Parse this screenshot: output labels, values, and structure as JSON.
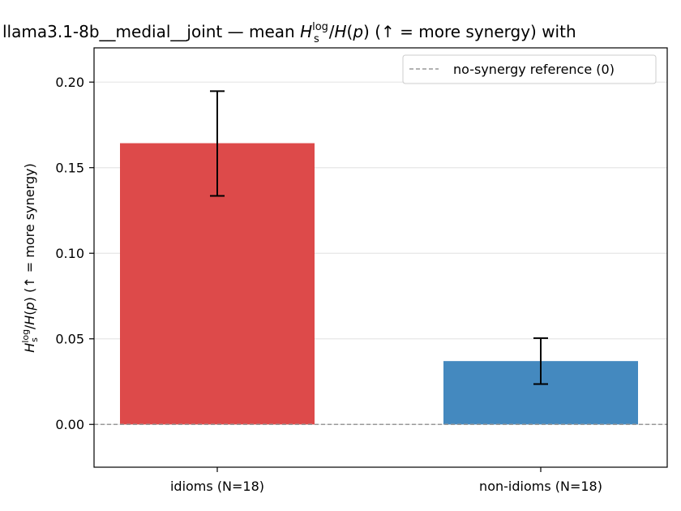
{
  "chart_data": {
    "type": "bar",
    "title_prefix": "llama3.1-8b__medial__joint — mean ",
    "title_suffix": "  (↑ = more synergy) with",
    "ylabel_suffix": "  (↑ = more synergy)",
    "metric": {
      "H": "H",
      "sup": "log",
      "sub": "s",
      "rest": "/",
      "H2": "H",
      "p": "p"
    },
    "categories": [
      "idioms (N=18)",
      "non-idioms (N=18)"
    ],
    "values": [
      0.1643,
      0.037
    ],
    "errors": [
      [
        0.1335,
        0.1947
      ],
      [
        0.0236,
        0.0504
      ]
    ],
    "colors": [
      "#dd4a4a",
      "#4489bf"
    ],
    "ylim": [
      -0.025,
      0.22
    ],
    "yticks": [
      0.0,
      0.05,
      0.1,
      0.15,
      0.2
    ],
    "ytick_labels": [
      "0.00",
      "0.05",
      "0.10",
      "0.15",
      "0.20"
    ],
    "reference_line": {
      "y": 0,
      "label": "no-synergy reference (0)",
      "color": "#999999"
    },
    "grid": "y",
    "legend_position": "top-right"
  }
}
